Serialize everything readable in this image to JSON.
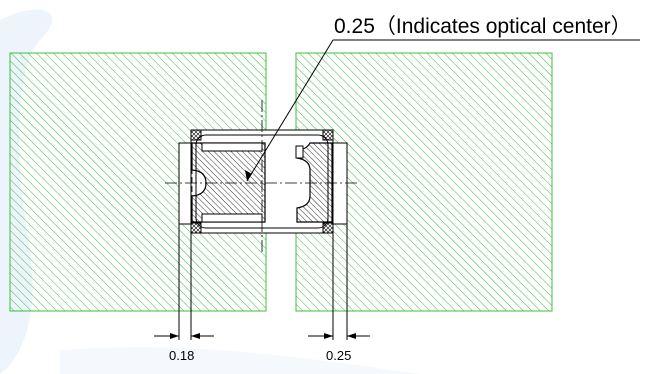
{
  "callout_label": "0.25（Indicates optical center）",
  "dimension_left": "0.18",
  "dimension_right": "0.25",
  "colors": {
    "pad_hatch": "#3dbf3d",
    "line": "#000000",
    "watermark": "#dce9fb"
  }
}
